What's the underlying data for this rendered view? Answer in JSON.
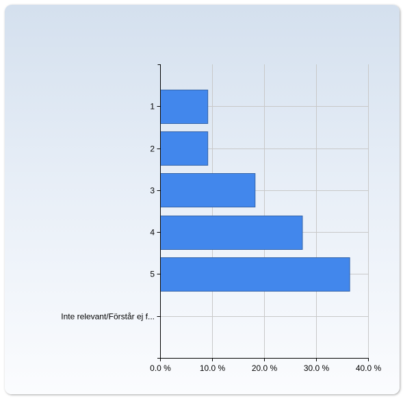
{
  "chart_data": {
    "type": "bar",
    "orientation": "horizontal",
    "categories": [
      "1",
      "2",
      "3",
      "4",
      "5",
      "Inte relevant/Förstår ej f..."
    ],
    "values": [
      9.1,
      9.1,
      18.2,
      27.3,
      36.4,
      0
    ],
    "xlim": [
      0,
      40
    ],
    "xticks": [
      0,
      10,
      20,
      30,
      40
    ],
    "xtick_labels": [
      "0.0 %",
      "10.0 %",
      "20.0 %",
      "30.0 %",
      "40.0 %"
    ],
    "grid": true,
    "bar_color": "#4287ec",
    "bar_edge_color": "#3363a8"
  }
}
